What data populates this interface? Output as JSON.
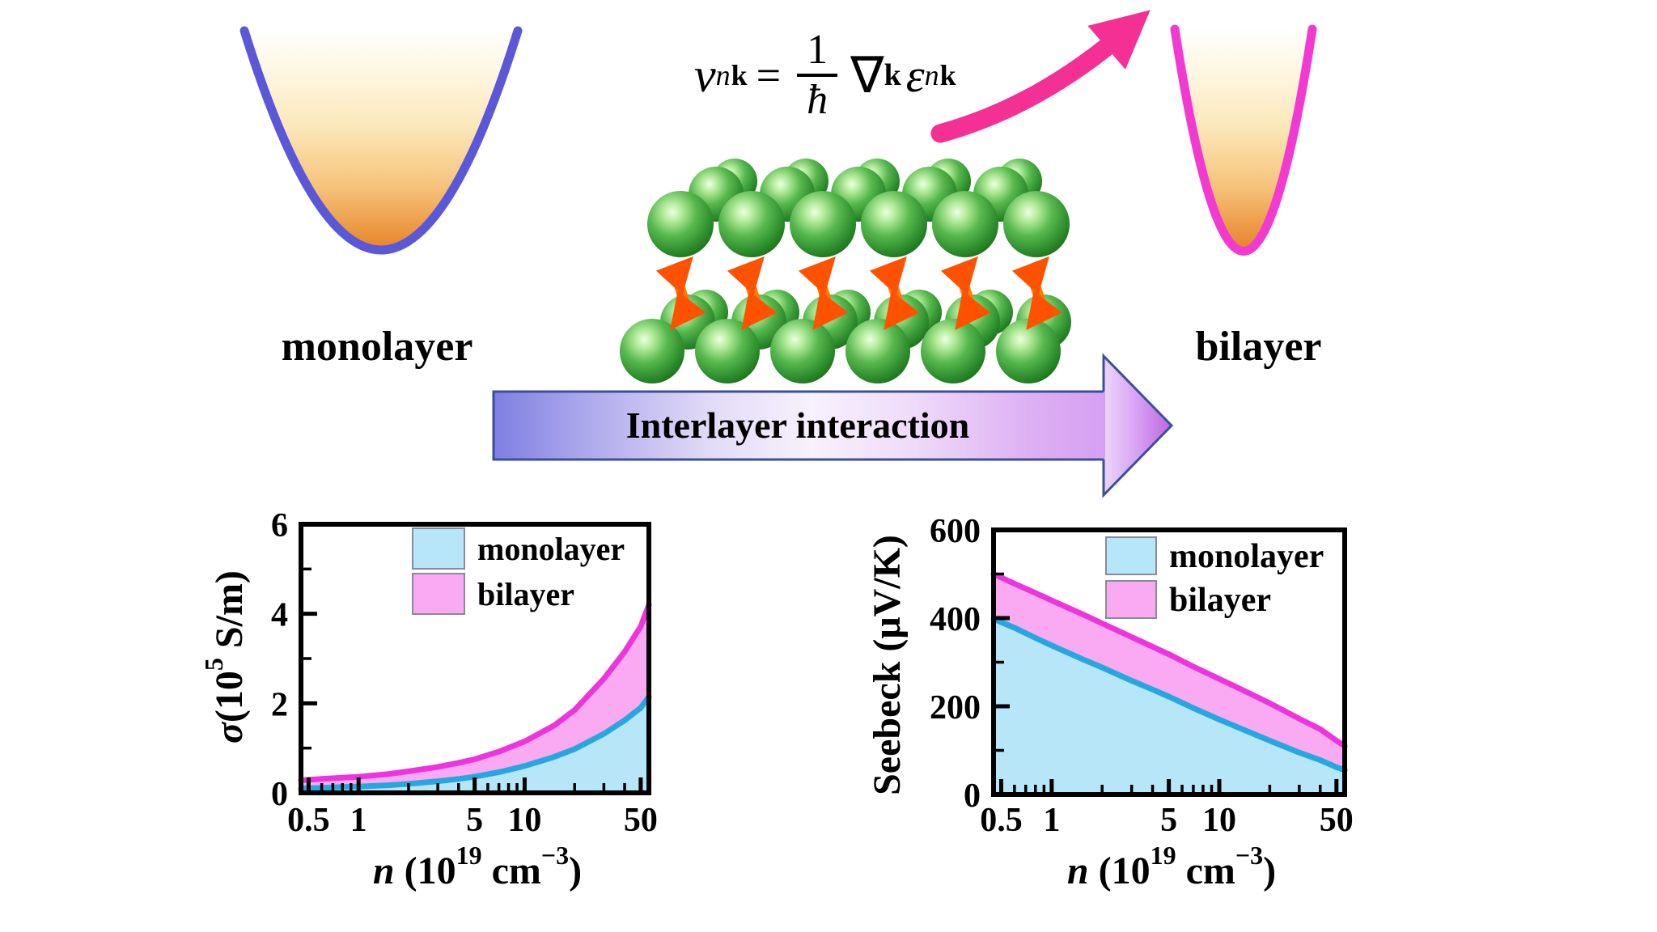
{
  "scene": {
    "monolayer_label": "monolayer",
    "bilayer_label": "bilayer",
    "banner_text": "Interlayer interaction",
    "equation": {
      "lhs_symbol": "v",
      "lhs_sub_n": "n",
      "lhs_sub_k": "k",
      "equals_sign": "=",
      "fraction_numerator": "1",
      "fraction_denominator": "ħ",
      "nabla_symbol": "∇",
      "nabla_sub_k": "k",
      "epsilon_symbol": "ε",
      "eps_sub_n": "n",
      "eps_sub_k": "k",
      "full": "v_nk = (1/ħ) ∇_k ε_nk"
    },
    "colors": {
      "monolayer_parabola_stroke": "#5a58d8",
      "bilayer_parabola_stroke": "#f23ad2",
      "band_fill_top": "#ffffff",
      "band_fill_bottom": "#e57d27",
      "pink_arrow": "#f43095",
      "banner_border": "#3b4f9b",
      "banner_left": "#7d7fe2",
      "banner_right": "#d5a0f1",
      "atom_green": "#2c8c2c",
      "interaction_arrow_orange": "#ff7300",
      "monolayer_line": "#27a7e0",
      "monolayer_fill": "#b6e6f8",
      "bilayer_line": "#ee35dd",
      "bilayer_fill": "#f9aaf0"
    }
  },
  "chart_data": [
    {
      "id": "sigma",
      "type": "area",
      "xscale": "log",
      "title": "Electrical conductivity vs carrier concentration",
      "xlabel": "n (10^19 cm^-3)",
      "ylabel": "σ(10^5 S/m)",
      "xlim": [
        0.45,
        56
      ],
      "ylim": [
        0,
        6
      ],
      "x_ticks": [
        0.5,
        1,
        5,
        10,
        50
      ],
      "x_tick_labels": [
        "0.5",
        "1",
        "5",
        "10",
        "50"
      ],
      "x_minor_ticks": [
        0.6,
        0.7,
        0.8,
        0.9,
        2,
        3,
        4,
        6,
        7,
        8,
        9,
        20,
        30,
        40
      ],
      "y_ticks": [
        0,
        2,
        4,
        6
      ],
      "y_tick_labels": [
        "0",
        "2",
        "4",
        "6"
      ],
      "y_minor_ticks": [
        1,
        3,
        5
      ],
      "grid": false,
      "legend_position": "top-center",
      "x": [
        0.45,
        0.6,
        0.8,
        1,
        1.5,
        2,
        3,
        4,
        5,
        7,
        10,
        15,
        20,
        30,
        40,
        50,
        56
      ],
      "series": [
        {
          "name": "monolayer",
          "line_color": "#27a7e0",
          "fill_color": "#b6e6f8",
          "values": [
            0.1,
            0.11,
            0.13,
            0.14,
            0.17,
            0.2,
            0.26,
            0.31,
            0.36,
            0.46,
            0.6,
            0.8,
            0.98,
            1.32,
            1.62,
            1.9,
            2.15
          ]
        },
        {
          "name": "bilayer",
          "line_color": "#ee35dd",
          "fill_color": "#f9aaf0",
          "values": [
            0.28,
            0.31,
            0.34,
            0.36,
            0.42,
            0.48,
            0.58,
            0.67,
            0.75,
            0.92,
            1.15,
            1.5,
            1.85,
            2.55,
            3.15,
            3.72,
            4.2
          ]
        }
      ],
      "ylabel_parts": {
        "sigma": "σ",
        "pre": "(10",
        "sup": "5",
        "post": " S/m)"
      },
      "xlabel_parts": {
        "n": "n",
        "open": " (10",
        "sup": "19",
        "mid": " cm",
        "sup2": "−3",
        "close": ")"
      }
    },
    {
      "id": "seebeck",
      "type": "area",
      "xscale": "log",
      "title": "Seebeck coefficient vs carrier concentration",
      "xlabel": "n (10^19 cm^-3)",
      "ylabel": "Seebeck (μV/K)",
      "xlim": [
        0.45,
        56
      ],
      "ylim": [
        0,
        600
      ],
      "x_ticks": [
        0.5,
        1,
        5,
        10,
        50
      ],
      "x_tick_labels": [
        "0.5",
        "1",
        "5",
        "10",
        "50"
      ],
      "x_minor_ticks": [
        0.6,
        0.7,
        0.8,
        0.9,
        2,
        3,
        4,
        6,
        7,
        8,
        9,
        20,
        30,
        40
      ],
      "y_ticks": [
        0,
        200,
        400,
        600
      ],
      "y_tick_labels": [
        "0",
        "200",
        "400",
        "600"
      ],
      "y_minor_ticks": [
        100,
        300,
        500
      ],
      "grid": false,
      "legend_position": "top-center",
      "x": [
        0.45,
        0.6,
        0.8,
        1,
        1.5,
        2,
        3,
        4,
        5,
        7,
        10,
        15,
        20,
        30,
        40,
        50,
        56
      ],
      "series": [
        {
          "name": "monolayer",
          "line_color": "#27a7e0",
          "fill_color": "#b6e6f8",
          "values": [
            398,
            378,
            355,
            338,
            308,
            288,
            258,
            238,
            222,
            196,
            170,
            142,
            122,
            95,
            78,
            62,
            55
          ]
        },
        {
          "name": "bilayer",
          "line_color": "#ee35dd",
          "fill_color": "#f9aaf0",
          "values": [
            500,
            478,
            457,
            440,
            410,
            388,
            357,
            335,
            318,
            290,
            262,
            230,
            207,
            172,
            148,
            122,
            110
          ]
        }
      ],
      "ylabel_parts": null,
      "xlabel_parts": {
        "n": "n",
        "open": " (10",
        "sup": "19",
        "mid": " cm",
        "sup2": "−3",
        "close": ")"
      }
    }
  ]
}
